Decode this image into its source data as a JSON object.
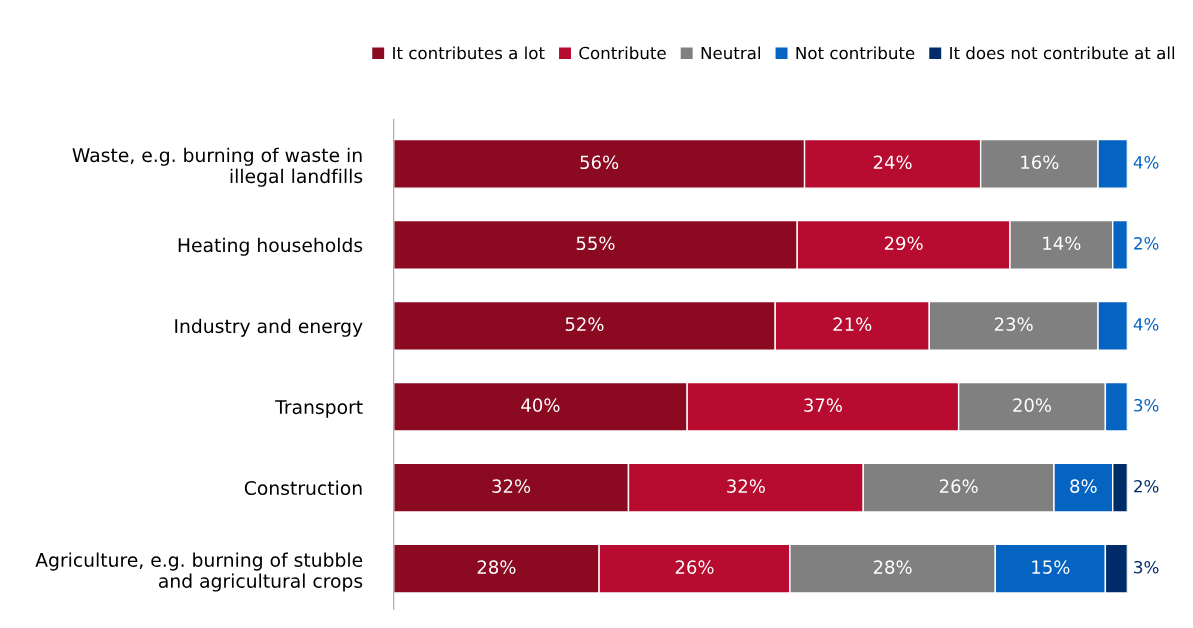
{
  "chart_data": {
    "type": "bar",
    "orientation": "horizontal",
    "stacked": true,
    "legend": "top right",
    "grid": false,
    "tick_labels": "y",
    "xlim": [
      0,
      100
    ],
    "categories": [
      "Waste, e.g. burning of waste in\nillegal landfills",
      "Heating households",
      "Industry and energy",
      "Transport",
      "Construction",
      "Agriculture, e.g. burning of stubble\nand agricultural crops"
    ],
    "series": [
      {
        "name": "It contributes a lot",
        "color": "#8b0a22",
        "values": [
          56,
          55,
          52,
          40,
          32,
          28
        ],
        "value_labels": [
          "56%",
          "55%",
          "52%",
          "40%",
          "32%",
          "28%"
        ]
      },
      {
        "name": "Contribute",
        "color": "#b70c2f",
        "values": [
          24,
          29,
          21,
          37,
          32,
          26
        ],
        "value_labels": [
          "24%",
          "29%",
          "21%",
          "37%",
          "32%",
          "26%"
        ]
      },
      {
        "name": "Neutral",
        "color": "#808080",
        "values": [
          16,
          14,
          23,
          20,
          26,
          28
        ],
        "value_labels": [
          "16%",
          "14%",
          "23%",
          "20%",
          "26%",
          "28%"
        ]
      },
      {
        "name": "Not contribute",
        "color": "#0563c1",
        "values": [
          4,
          2,
          4,
          3,
          8,
          15
        ],
        "value_labels": [
          "4%",
          "2%",
          "4%",
          "3%",
          "8%",
          "15%"
        ]
      },
      {
        "name": "It does not contribute at all",
        "color": "#002d6a",
        "values": [
          null,
          null,
          null,
          null,
          2,
          3
        ],
        "value_labels": [
          null,
          null,
          null,
          null,
          "2%",
          "3%"
        ]
      }
    ]
  }
}
